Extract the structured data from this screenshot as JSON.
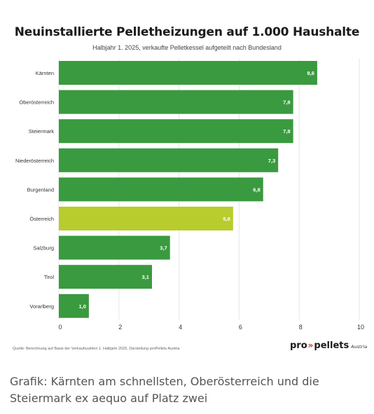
{
  "chart_data": {
    "type": "bar",
    "orientation": "horizontal",
    "title": "Neuinstallierte Pelletheizungen auf 1.000 Haushalte",
    "subtitle": "Halbjahr 1. 2025, verkaufte Pelletkessel aufgeteilt nach Bundesland",
    "categories": [
      "Kärnten",
      "Oberösterreich",
      "Steiermark",
      "Niederösterreich",
      "Burgenland",
      "Österreich",
      "Salzburg",
      "Tirol",
      "Vorarlberg"
    ],
    "values": [
      8.6,
      7.8,
      7.8,
      7.3,
      6.8,
      5.8,
      3.7,
      3.1,
      1.0
    ],
    "value_labels": [
      "8,6",
      "7,8",
      "7,8",
      "7,3",
      "6,8",
      "5,8",
      "3,7",
      "3,1",
      "1,0"
    ],
    "highlight_category": "Österreich",
    "colors": {
      "default": "#3a9a3f",
      "highlight": "#b8cc2d",
      "grid": "#e6e6e6"
    },
    "xlim": [
      0,
      10
    ],
    "xticks": [
      "0",
      "2",
      "4",
      "6",
      "8",
      "10"
    ],
    "grid": true,
    "legend": "none"
  },
  "source": "Quelle: Berechnung auf Basis der Verkaufszahlen 1. Halbjahr 2025, Darstellung proPellets Austria",
  "logo": {
    "pro": "pro",
    "chev": "»",
    "pellets": "pellets",
    "sub": "Austria"
  },
  "caption": {
    "line1": "Grafik: Kärnten am schnellsten, Oberösterreich und die",
    "line2": "Steiermark ex aequo auf Platz zwei"
  }
}
